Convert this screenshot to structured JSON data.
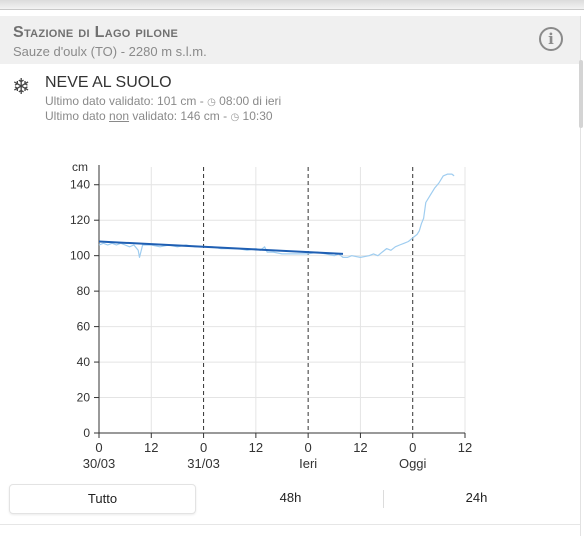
{
  "station": {
    "title": "Stazione di Lago pilone",
    "subtitle": "Sauze d'oulx (TO) - 2280 m s.l.m.",
    "info_icon": "info-circle-icon",
    "info_glyph": "i"
  },
  "sensor": {
    "icon": "snowflake-icon",
    "icon_glyph": "❄",
    "title": "NEVE AL SUOLO",
    "validated_prefix": "Ultimo dato validato: 101 cm - ",
    "validated_time": "08:00 di ieri",
    "unvalidated_prefix": "Ultimo dato ",
    "unvalidated_word": "non",
    "unvalidated_suffix": " validato: 146 cm - ",
    "unvalidated_time": "10:30",
    "clock_icon": "clock-icon",
    "clock_glyph": "◷"
  },
  "chart_data": {
    "type": "line",
    "ylabel": "cm",
    "ylim": [
      0,
      150
    ],
    "yticks": [
      0,
      20,
      40,
      60,
      80,
      100,
      120,
      140
    ],
    "xlim": [
      0,
      84
    ],
    "xticks": [
      {
        "x": 0,
        "label": "0",
        "sub": "30/03"
      },
      {
        "x": 12,
        "label": "12",
        "sub": ""
      },
      {
        "x": 24,
        "label": "0",
        "sub": "31/03"
      },
      {
        "x": 36,
        "label": "12",
        "sub": ""
      },
      {
        "x": 48,
        "label": "0",
        "sub": "Ieri"
      },
      {
        "x": 60,
        "label": "12",
        "sub": ""
      },
      {
        "x": 72,
        "label": "0",
        "sub": "Oggi"
      },
      {
        "x": 84,
        "label": "12",
        "sub": ""
      }
    ],
    "day_boundaries": [
      0,
      24,
      48,
      72
    ],
    "grid": true,
    "series": [
      {
        "color": "#9fcdf0",
        "points": [
          [
            0,
            106
          ],
          [
            1,
            107
          ],
          [
            2,
            106
          ],
          [
            3,
            107
          ],
          [
            4,
            106
          ],
          [
            5,
            107
          ],
          [
            6,
            106
          ],
          [
            7,
            105
          ],
          [
            8,
            106
          ],
          [
            9,
            103
          ],
          [
            9.3,
            99
          ],
          [
            9.8,
            104
          ],
          [
            10,
            106
          ],
          [
            12,
            106
          ],
          [
            14,
            105
          ],
          [
            16,
            106
          ],
          [
            18,
            105
          ],
          [
            20,
            106
          ],
          [
            22,
            105
          ],
          [
            24,
            105
          ],
          [
            26,
            105
          ],
          [
            28,
            104
          ],
          [
            30,
            104
          ],
          [
            32,
            104
          ],
          [
            34,
            103
          ],
          [
            36,
            104
          ],
          [
            37,
            103
          ],
          [
            38,
            105
          ],
          [
            38.6,
            102
          ],
          [
            40,
            102
          ],
          [
            42,
            101
          ],
          [
            44,
            101
          ],
          [
            46,
            101
          ],
          [
            48,
            101
          ],
          [
            50,
            102
          ],
          [
            52,
            101
          ],
          [
            54,
            100
          ],
          [
            55,
            101
          ],
          [
            56,
            99
          ],
          [
            57,
            99
          ],
          [
            58,
            100
          ],
          [
            60,
            99
          ],
          [
            62,
            100
          ],
          [
            63,
            101
          ],
          [
            64,
            100
          ],
          [
            65,
            102
          ],
          [
            66,
            104
          ],
          [
            67,
            103
          ],
          [
            68,
            105
          ],
          [
            69,
            106
          ],
          [
            70,
            107
          ],
          [
            71,
            108
          ],
          [
            72,
            110
          ],
          [
            73,
            112
          ],
          [
            73.5,
            114
          ],
          [
            74,
            118
          ],
          [
            74.5,
            121
          ],
          [
            75,
            130
          ],
          [
            76,
            134
          ],
          [
            77,
            138
          ],
          [
            78,
            141
          ],
          [
            79,
            145
          ],
          [
            80,
            146
          ],
          [
            81,
            146
          ],
          [
            81.5,
            145
          ]
        ]
      },
      {
        "color": "#1f5fb3",
        "points": [
          [
            0,
            108
          ],
          [
            56,
            101
          ]
        ]
      }
    ]
  },
  "tabs": [
    {
      "label": "Tutto",
      "active": true
    },
    {
      "label": "48h",
      "active": false
    },
    {
      "label": "24h",
      "active": false
    }
  ]
}
